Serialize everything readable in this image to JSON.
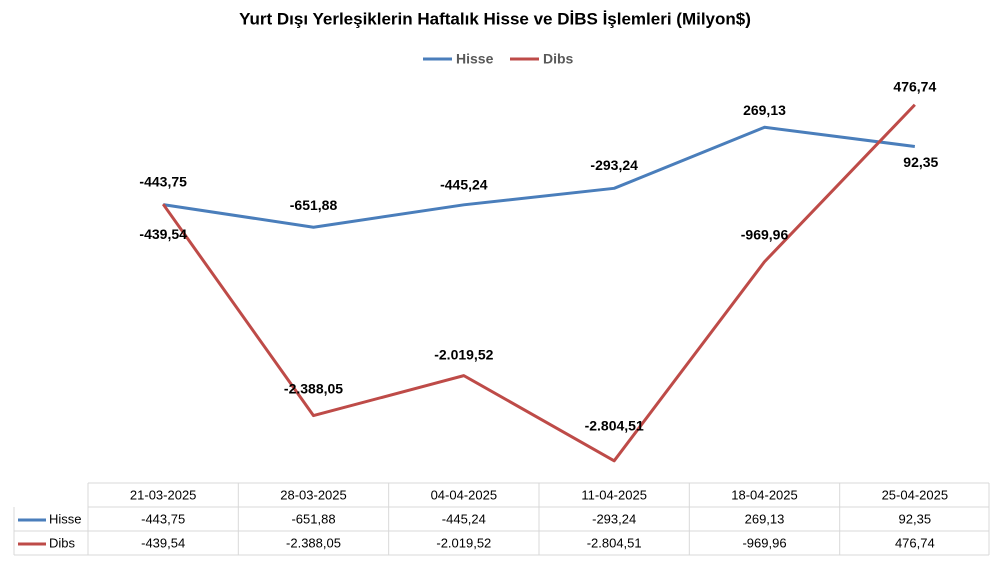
{
  "chart_data": {
    "type": "line",
    "title": "Yurt Dışı Yerleşiklerin Haftalık Hisse ve DİBS İşlemleri (Milyon$)",
    "categories": [
      "21-03-2025",
      "28-03-2025",
      "04-04-2025",
      "11-04-2025",
      "18-04-2025",
      "25-04-2025"
    ],
    "ylim": [
      -3000,
      1000
    ],
    "series": [
      {
        "name": "Hisse",
        "color": "#4a7ebb",
        "values": [
          -443.75,
          -651.88,
          -445.24,
          -293.24,
          269.13,
          92.35
        ],
        "value_labels": [
          "-443,75",
          "-651,88",
          "-445,24",
          "-293,24",
          "269,13",
          "92,35"
        ]
      },
      {
        "name": "Dibs",
        "color": "#be4b48",
        "values": [
          -439.54,
          -2388.05,
          -2019.52,
          -2804.51,
          -969.96,
          476.74
        ],
        "value_labels": [
          "-439,54",
          "-2.388,05",
          "-2.019,52",
          "-2.804,51",
          "-969,96",
          "476,74"
        ]
      }
    ]
  }
}
